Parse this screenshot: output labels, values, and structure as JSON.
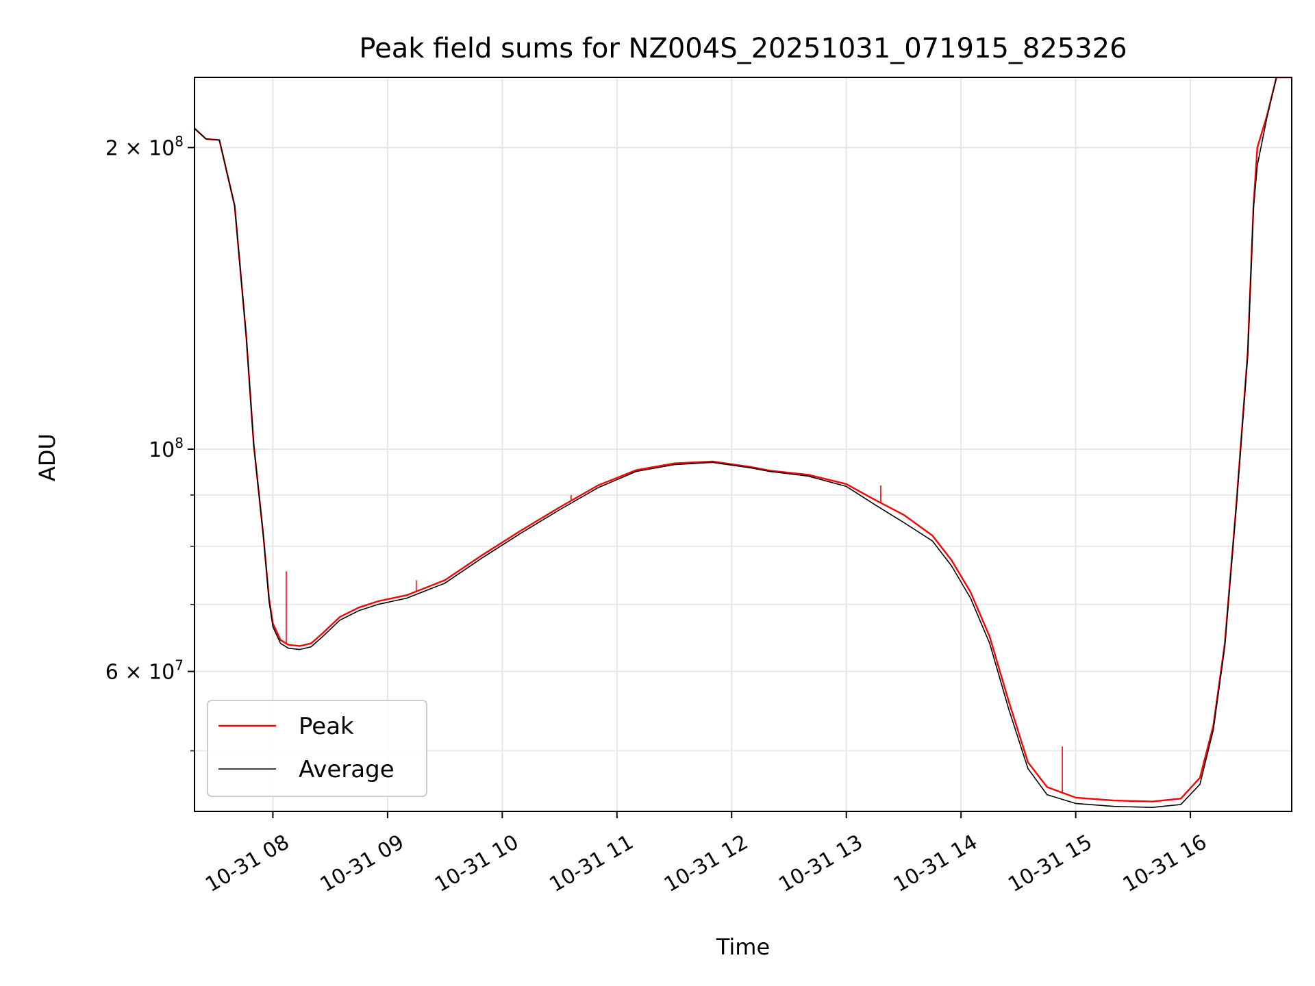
{
  "colors": {
    "peak": "#ff0000",
    "average": "#000000",
    "grid": "#e6e6e6"
  },
  "chart_data": {
    "type": "line",
    "title": "Peak field sums for NZ004S_20251031_071915_825326",
    "xlabel": "Time",
    "ylabel": "ADU",
    "yscale": "log",
    "grid": true,
    "legend_position": "lower-left",
    "xlim": [
      "2025-10-31 07:19",
      "2025-10-31 16:53"
    ],
    "ylim": [
      43500000,
      235000000
    ],
    "x_ticks": [
      {
        "value": "2025-10-31 08:00",
        "label": "10-31 08"
      },
      {
        "value": "2025-10-31 09:00",
        "label": "10-31 09"
      },
      {
        "value": "2025-10-31 10:00",
        "label": "10-31 10"
      },
      {
        "value": "2025-10-31 11:00",
        "label": "10-31 11"
      },
      {
        "value": "2025-10-31 12:00",
        "label": "10-31 12"
      },
      {
        "value": "2025-10-31 13:00",
        "label": "10-31 13"
      },
      {
        "value": "2025-10-31 14:00",
        "label": "10-31 14"
      },
      {
        "value": "2025-10-31 15:00",
        "label": "10-31 15"
      },
      {
        "value": "2025-10-31 16:00",
        "label": "10-31 16"
      }
    ],
    "y_major_ticks": [
      {
        "value": 60000000,
        "mantissa": "6",
        "exponent": "7"
      },
      {
        "value": 100000000,
        "mantissa": "",
        "exponent": "8"
      },
      {
        "value": 200000000,
        "mantissa": "2",
        "exponent": "8"
      }
    ],
    "y_minor_ticks": [
      50000000,
      70000000,
      80000000,
      90000000,
      300000000
    ],
    "series": [
      {
        "name": "Peak",
        "color": "#ff0000",
        "x": [
          "2025-10-31 07:19",
          "2025-10-31 07:25",
          "2025-10-31 07:32",
          "2025-10-31 07:40",
          "2025-10-31 07:46",
          "2025-10-31 07:50",
          "2025-10-31 07:55",
          "2025-10-31 07:58",
          "2025-10-31 08:00",
          "2025-10-31 08:04",
          "2025-10-31 08:08",
          "2025-10-31 08:14",
          "2025-10-31 08:20",
          "2025-10-31 08:26",
          "2025-10-31 08:35",
          "2025-10-31 08:45",
          "2025-10-31 08:55",
          "2025-10-31 09:10",
          "2025-10-31 09:30",
          "2025-10-31 09:50",
          "2025-10-31 10:10",
          "2025-10-31 10:30",
          "2025-10-31 10:50",
          "2025-10-31 11:10",
          "2025-10-31 11:30",
          "2025-10-31 11:50",
          "2025-10-31 12:10",
          "2025-10-31 12:20",
          "2025-10-31 12:40",
          "2025-10-31 13:00",
          "2025-10-31 13:15",
          "2025-10-31 13:30",
          "2025-10-31 13:45",
          "2025-10-31 13:55",
          "2025-10-31 14:05",
          "2025-10-31 14:15",
          "2025-10-31 14:25",
          "2025-10-31 14:35",
          "2025-10-31 14:45",
          "2025-10-31 15:00",
          "2025-10-31 15:20",
          "2025-10-31 15:40",
          "2025-10-31 15:55",
          "2025-10-31 16:05",
          "2025-10-31 16:12",
          "2025-10-31 16:18",
          "2025-10-31 16:24",
          "2025-10-31 16:30",
          "2025-10-31 16:33",
          "2025-10-31 16:35",
          "2025-10-31 16:40",
          "2025-10-31 16:45",
          "2025-10-31 16:53"
        ],
        "y": [
          209000000,
          204000000,
          203500000,
          175000000,
          130000000,
          101000000,
          82000000,
          71000000,
          67000000,
          64500000,
          63800000,
          63600000,
          64000000,
          65500000,
          68000000,
          69500000,
          70500000,
          71500000,
          74000000,
          78500000,
          83000000,
          87500000,
          92000000,
          95300000,
          96800000,
          97200000,
          96000000,
          95200000,
          94300000,
          92300000,
          89000000,
          86000000,
          82000000,
          77500000,
          72000000,
          65000000,
          56000000,
          48700000,
          46000000,
          44900000,
          44600000,
          44500000,
          44800000,
          47000000,
          53000000,
          64000000,
          88000000,
          125000000,
          175000000,
          200000000,
          215000000,
          235000000,
          235000000
        ]
      },
      {
        "name": "Average",
        "color": "#000000",
        "x": [
          "2025-10-31 07:19",
          "2025-10-31 07:25",
          "2025-10-31 07:32",
          "2025-10-31 07:40",
          "2025-10-31 07:46",
          "2025-10-31 07:50",
          "2025-10-31 07:55",
          "2025-10-31 07:58",
          "2025-10-31 08:00",
          "2025-10-31 08:04",
          "2025-10-31 08:08",
          "2025-10-31 08:14",
          "2025-10-31 08:20",
          "2025-10-31 08:26",
          "2025-10-31 08:35",
          "2025-10-31 08:45",
          "2025-10-31 08:55",
          "2025-10-31 09:10",
          "2025-10-31 09:30",
          "2025-10-31 09:50",
          "2025-10-31 10:10",
          "2025-10-31 10:30",
          "2025-10-31 10:50",
          "2025-10-31 11:10",
          "2025-10-31 11:30",
          "2025-10-31 11:50",
          "2025-10-31 12:10",
          "2025-10-31 12:20",
          "2025-10-31 12:40",
          "2025-10-31 13:00",
          "2025-10-31 13:15",
          "2025-10-31 13:30",
          "2025-10-31 13:45",
          "2025-10-31 13:55",
          "2025-10-31 14:05",
          "2025-10-31 14:15",
          "2025-10-31 14:25",
          "2025-10-31 14:35",
          "2025-10-31 14:45",
          "2025-10-31 15:00",
          "2025-10-31 15:20",
          "2025-10-31 15:40",
          "2025-10-31 15:55",
          "2025-10-31 16:05",
          "2025-10-31 16:12",
          "2025-10-31 16:18",
          "2025-10-31 16:24",
          "2025-10-31 16:30",
          "2025-10-31 16:33",
          "2025-10-31 16:35",
          "2025-10-31 16:40",
          "2025-10-31 16:45",
          "2025-10-31 16:53"
        ],
        "y": [
          209000000,
          204000000,
          203500000,
          175000000,
          130000000,
          101000000,
          82000000,
          70500000,
          66500000,
          64000000,
          63300000,
          63100000,
          63500000,
          65000000,
          67500000,
          69000000,
          70000000,
          71000000,
          73500000,
          78000000,
          82500000,
          87000000,
          91500000,
          95000000,
          96500000,
          97000000,
          95800000,
          95000000,
          94000000,
          91800000,
          88000000,
          84500000,
          81000000,
          76500000,
          71000000,
          64000000,
          55000000,
          48000000,
          45200000,
          44300000,
          44000000,
          43900000,
          44200000,
          46300000,
          52500000,
          63500000,
          87500000,
          124000000,
          174000000,
          192000000,
          214000000,
          235000000,
          235000000
        ]
      }
    ],
    "annotations": {
      "peak_spikes": [
        {
          "x": "2025-10-31 08:07",
          "y": 75500000
        },
        {
          "x": "2025-10-31 09:15",
          "y": 74000000
        },
        {
          "x": "2025-10-31 10:36",
          "y": 90000000
        },
        {
          "x": "2025-10-31 13:18",
          "y": 92000000
        },
        {
          "x": "2025-10-31 14:53",
          "y": 50500000
        }
      ]
    }
  }
}
